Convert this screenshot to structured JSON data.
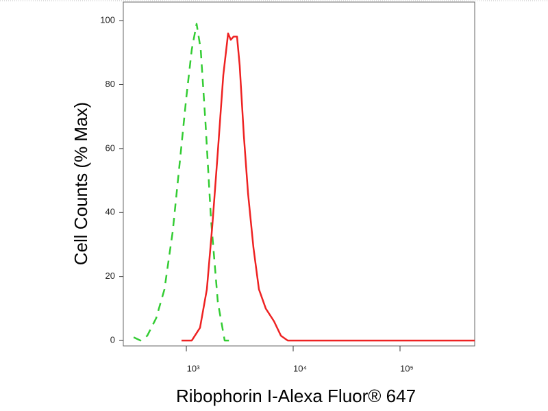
{
  "chart_data": {
    "type": "line",
    "x_label": "Ribophorin I-Alexa Fluor® 647",
    "y_label": "Cell Counts (% Max)",
    "xscale": "log",
    "xlim": [
      257,
      500000
    ],
    "ylim": [
      -1.7,
      105.8
    ],
    "xticks": [
      {
        "value": 1000,
        "label": "10³"
      },
      {
        "value": 10000,
        "label": "10⁴"
      },
      {
        "value": 100000,
        "label": "10⁵"
      }
    ],
    "yticks": [
      0,
      20,
      40,
      60,
      80,
      100
    ],
    "series": [
      {
        "color": "#33cc33",
        "line_style": "dashed",
        "x": [
          321,
          372,
          431,
          522,
          624,
          745,
          863,
          1000,
          1125,
          1248,
          1363,
          1512,
          1701,
          1971,
          2285,
          2727
        ],
        "values": [
          1,
          0,
          1.5,
          7,
          16,
          34,
          55,
          76,
          91,
          99,
          91,
          68,
          38,
          12,
          0,
          0
        ]
      },
      {
        "color": "#ee2222",
        "line_style": "solid",
        "x": [
          902,
          1125,
          1343,
          1557,
          1751,
          1971,
          2218,
          2458,
          2606,
          2768,
          2980,
          3158,
          3454,
          3777,
          4250,
          4781,
          5542,
          6610,
          7672,
          8890,
          13820,
          500000
        ],
        "values": [
          0,
          0,
          4,
          16,
          36,
          59,
          83,
          96,
          94,
          95,
          95,
          86,
          64,
          46,
          29,
          16,
          10,
          6,
          1.5,
          0,
          0,
          0
        ]
      }
    ]
  }
}
